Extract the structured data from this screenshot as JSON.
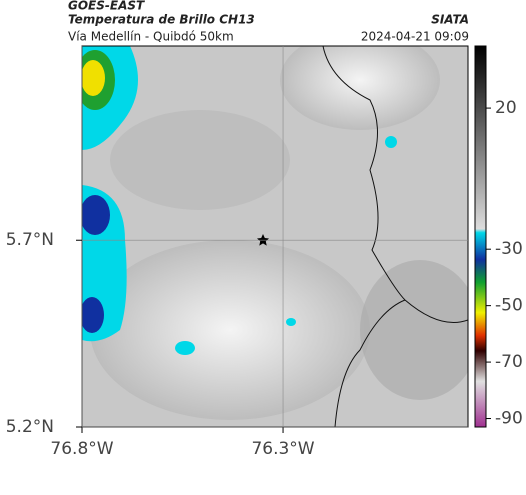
{
  "header": {
    "product": "GOES-EAST",
    "title": "Temperatura de Brillo CH13",
    "subtitle": "Vía Medellín - Quibdó 50km",
    "source": "SIATA",
    "timestamp": "2024-04-21 09:09"
  },
  "map": {
    "xlim": [
      -76.8,
      -75.84
    ],
    "ylim": [
      5.2,
      6.22
    ],
    "xticks": [
      {
        "value": -76.8,
        "label": "76.8°W"
      },
      {
        "value": -76.3,
        "label": "76.3°W"
      }
    ],
    "yticks": [
      {
        "value": 5.7,
        "label": "5.7°N"
      },
      {
        "value": 5.2,
        "label": "5.2°N"
      }
    ],
    "grid": true
  },
  "colorbar": {
    "lim": [
      -93,
      42
    ],
    "ticks": [
      20,
      -30,
      -50,
      -70,
      -90
    ]
  }
}
